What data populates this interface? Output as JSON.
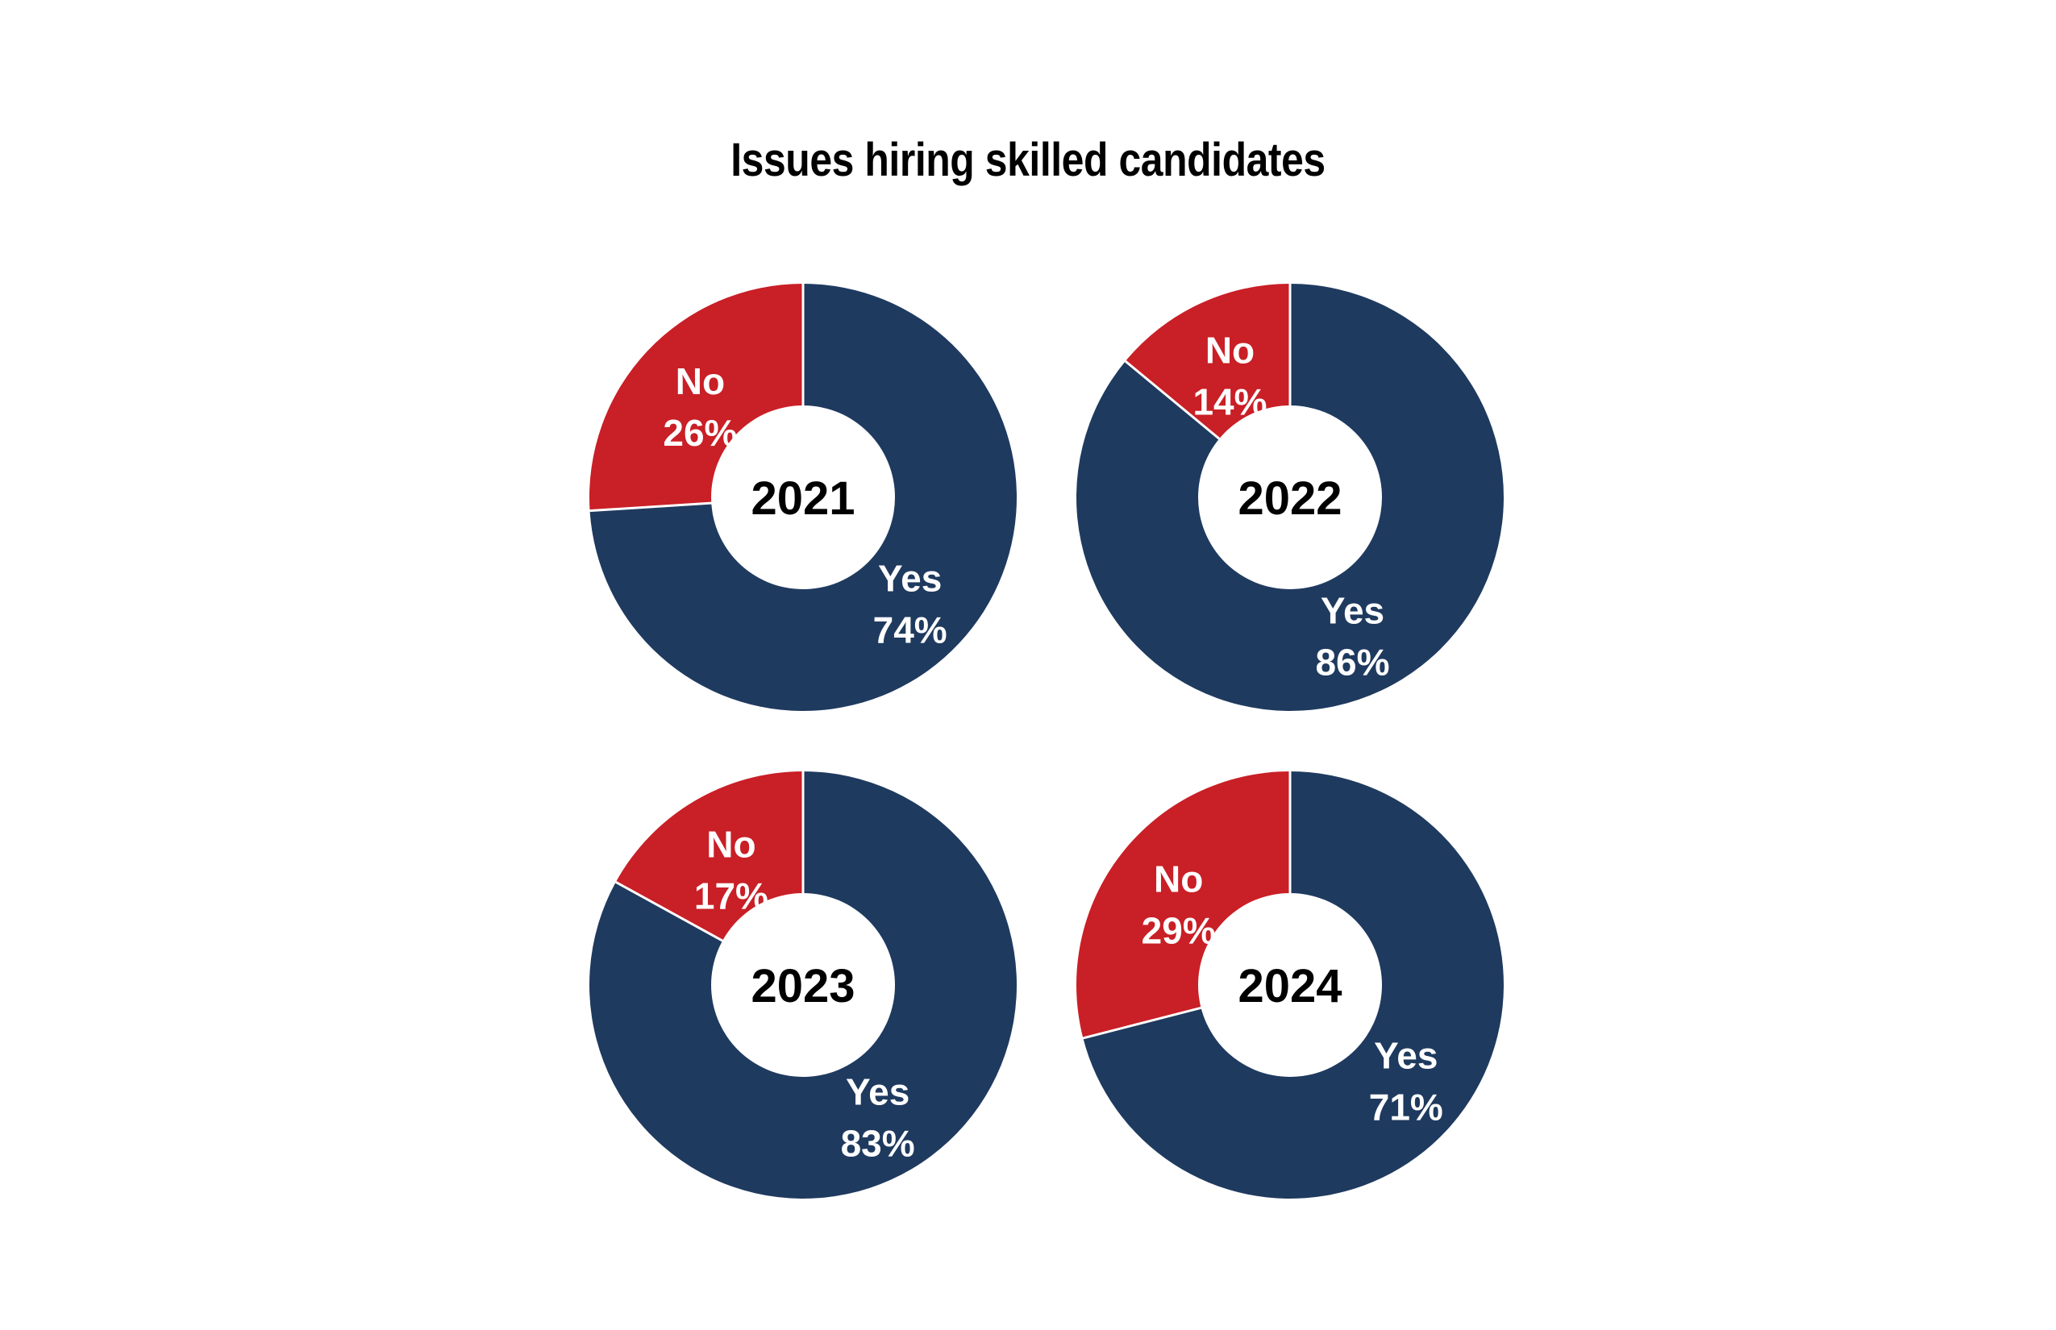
{
  "chart_data": {
    "type": "pie",
    "title": "Issues hiring skilled candidates",
    "colors": {
      "Yes": "#1f3a5f",
      "No": "#c91f26",
      "hole": "#ffffff",
      "separator": "#ffffff"
    },
    "charts": [
      {
        "center_label": "2021",
        "slices": [
          {
            "name": "Yes",
            "value": 74,
            "label": "74%"
          },
          {
            "name": "No",
            "value": 26,
            "label": "26%"
          }
        ]
      },
      {
        "center_label": "2022",
        "slices": [
          {
            "name": "Yes",
            "value": 86,
            "label": "86%"
          },
          {
            "name": "No",
            "value": 14,
            "label": "14%"
          }
        ]
      },
      {
        "center_label": "2023",
        "slices": [
          {
            "name": "Yes",
            "value": 83,
            "label": "83%"
          },
          {
            "name": "No",
            "value": 17,
            "label": "17%"
          }
        ]
      },
      {
        "center_label": "2024",
        "slices": [
          {
            "name": "Yes",
            "value": 71,
            "label": "71%"
          },
          {
            "name": "No",
            "value": 29,
            "label": "29%"
          }
        ]
      }
    ]
  }
}
